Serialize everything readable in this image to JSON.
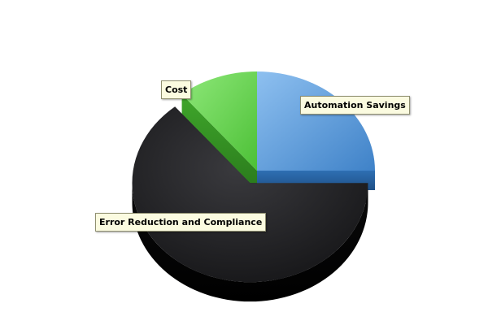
{
  "chart_data": {
    "type": "pie",
    "style": "3d-exploded",
    "title": "",
    "slices": [
      {
        "label": "Automation Savings",
        "value": 25,
        "color": "#5b9bd5"
      },
      {
        "label": "Error Reduction and Compliance",
        "value": 64,
        "color": "#1c1c1e"
      },
      {
        "label": "Cost",
        "value": 11,
        "color": "#62d34a"
      }
    ],
    "exploded_slice": "Error Reduction and Compliance",
    "legend": "none",
    "labels": "callout boxes"
  }
}
